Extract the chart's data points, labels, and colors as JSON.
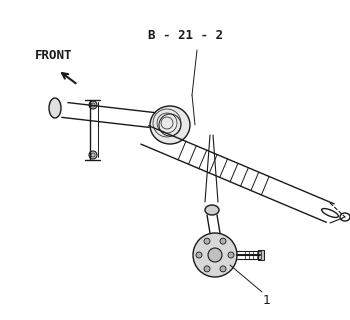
{
  "bg_color": "#ffffff",
  "line_color": "#1a1a1a",
  "label_1": "1",
  "label_b212": "B - 21 - 2",
  "label_front": "FRONT",
  "fig_width": 3.5,
  "fig_height": 3.2,
  "dpi": 100
}
